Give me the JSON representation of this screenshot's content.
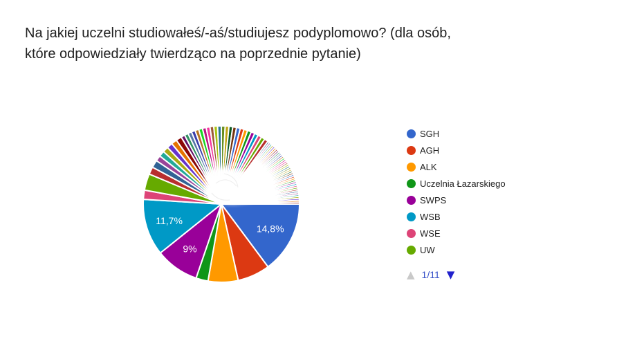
{
  "title": {
    "full": "Na jakiej uczelni studiowałeś/-aś/studiujesz podyplomowo? (dla osób, które odpowiedziały twierdząco na poprzednie pytanie)",
    "line1": "Na jakiej uczelni studiowałeś/-aś/studiujesz podyplomowo? (dla osób,",
    "line2": "które odpowiedziały twierdząco na poprzednie pytanie)"
  },
  "chart_data": {
    "type": "pie",
    "title": "Na jakiej uczelni studiowałeś/-aś/studiujesz podyplomowo? (dla osób, które odpowiedziały twierdząco na poprzednie pytanie)",
    "legend_position": "right",
    "start_angle_deg": 0,
    "direction": "clockwise",
    "label_color": "#ffffff",
    "slices": [
      {
        "label": "SGH",
        "pct": 14.8,
        "display_label": "14,8%",
        "color": "#3366CC"
      },
      {
        "label": "AGH",
        "pct": 6.7,
        "display_label": "",
        "color": "#DC3912"
      },
      {
        "label": "ALK",
        "pct": 6.2,
        "display_label": "",
        "color": "#FF9900"
      },
      {
        "label": "Uczelnia Łazarskiego",
        "pct": 2.5,
        "display_label": "",
        "color": "#109618"
      },
      {
        "label": "SWPS",
        "pct": 9.0,
        "display_label": "9%",
        "color": "#990099"
      },
      {
        "label": "WSB",
        "pct": 11.7,
        "display_label": "11,7%",
        "color": "#0099C6"
      },
      {
        "label": "WSE",
        "pct": 1.9,
        "display_label": "",
        "color": "#DD4477"
      },
      {
        "label": "UW",
        "pct": 3.4,
        "display_label": "",
        "color": "#66AA00"
      }
    ],
    "other_slices": {
      "note": "many unlabeled single-answer slices, sizes estimated from pixels",
      "total_pct_approx": 43.8,
      "groups": [
        {
          "count": 2,
          "pct_each": 1.55
        },
        {
          "count": 6,
          "pct_each": 1.17
        },
        {
          "count": 24,
          "pct_each": 0.78
        },
        {
          "count": 38,
          "pct_each": 0.39
        }
      ],
      "palette_start_index": 8
    },
    "palette": [
      "#3366CC",
      "#DC3912",
      "#FF9900",
      "#109618",
      "#990099",
      "#0099C6",
      "#DD4477",
      "#66AA00",
      "#B82E2E",
      "#316395",
      "#994499",
      "#22AA99",
      "#AAAA11",
      "#6633CC",
      "#E67300",
      "#8B0707",
      "#651067",
      "#329262",
      "#5574A6",
      "#3B3EAC",
      "#B77322",
      "#16D620",
      "#B91383",
      "#F4359E",
      "#9C5935",
      "#A9C413",
      "#2A778D",
      "#668D1C",
      "#BEA413",
      "#0C5922",
      "#743411"
    ]
  },
  "pagination": {
    "current": "1/11",
    "prev_icon": "▲",
    "next_icon": "▼",
    "prev_enabled": false,
    "next_enabled": true,
    "label_color": "#3550C8",
    "prev_color": "#C9C9C9",
    "next_color": "#2121CC"
  }
}
